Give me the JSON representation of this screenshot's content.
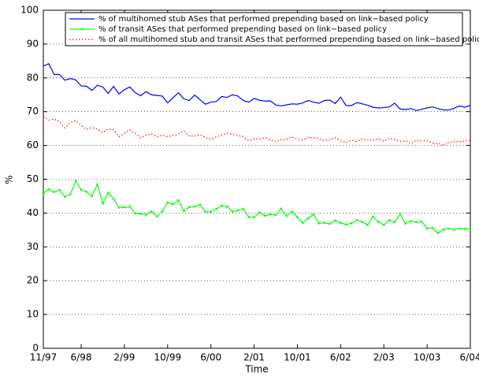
{
  "chart_data": {
    "type": "line",
    "x_label": "Time",
    "y_label": "%",
    "categories": [
      "11/97",
      null,
      null,
      null,
      null,
      null,
      null,
      "6/98",
      null,
      null,
      null,
      null,
      null,
      null,
      null,
      "2/99",
      null,
      null,
      null,
      null,
      null,
      null,
      null,
      "10/99",
      null,
      null,
      null,
      null,
      null,
      null,
      null,
      "6/00",
      null,
      null,
      null,
      null,
      null,
      null,
      null,
      "2/01",
      null,
      null,
      null,
      null,
      null,
      null,
      null,
      "10/01",
      null,
      null,
      null,
      null,
      null,
      null,
      null,
      "6/02",
      null,
      null,
      null,
      null,
      null,
      null,
      null,
      "2/03",
      null,
      null,
      null,
      null,
      null,
      null,
      null,
      "10/03",
      null,
      null,
      null,
      null,
      null,
      null,
      null,
      "6/04"
    ],
    "series": [
      {
        "name": "% of multihomed stub ASes that performed prepending based on link−based policy",
        "color": "#0000ff",
        "style": "solid",
        "values": [
          83.5,
          84.2,
          81,
          81,
          79.3,
          79.8,
          79.4,
          77.6,
          77.5,
          76.3,
          77.8,
          77.3,
          75.4,
          77.5,
          75.2,
          76.5,
          77.3,
          75.6,
          74.7,
          75.9,
          75,
          74.8,
          74.6,
          72.6,
          74.1,
          75.6,
          73.8,
          73.3,
          74.9,
          73.5,
          72.2,
          72.8,
          73,
          74.5,
          74.2,
          75,
          74.6,
          73.3,
          72.8,
          73.9,
          73.4,
          73.1,
          73.2,
          72,
          71.7,
          72,
          72.3,
          72.2,
          72.6,
          73.3,
          72.8,
          72.5,
          73.3,
          73.4,
          72.4,
          74.3,
          71.8,
          71.8,
          72.7,
          72.3,
          71.9,
          71.3,
          71.1,
          71.2,
          71.4,
          72.5,
          70.8,
          70.6,
          70.9,
          70.3,
          70.7,
          71.1,
          71.4,
          70.9,
          70.5,
          70.5,
          71,
          71.7,
          71.3,
          71.9
        ]
      },
      {
        "name": "% of transit ASes that performed prepending based on link−based policy",
        "color": "#00ff00",
        "style": "solid",
        "marker": true,
        "values": [
          45.8,
          47,
          46.2,
          46.8,
          44.8,
          45.5,
          49.5,
          46.9,
          46.3,
          45,
          48.5,
          42.8,
          46,
          44.2,
          41.6,
          41.7,
          41.9,
          39.9,
          39.8,
          39.5,
          40.5,
          39,
          40.5,
          43.1,
          42.6,
          43.8,
          40.6,
          41.8,
          41.9,
          42.5,
          40.4,
          40.4,
          41.2,
          42.2,
          41.9,
          40.4,
          40.8,
          41.2,
          38.8,
          38.8,
          40.2,
          39.2,
          39.6,
          39.4,
          41.3,
          39.1,
          40.5,
          38.8,
          37.1,
          38.4,
          39.6,
          37,
          37.1,
          36.8,
          37.8,
          37.1,
          36.6,
          37,
          37.9,
          37.4,
          36.5,
          38.9,
          37.4,
          36.5,
          37.9,
          37.3,
          39.8,
          36.9,
          37.6,
          37.3,
          37.5,
          35.4,
          35.6,
          34.1,
          35.1,
          35.4,
          35.1,
          35.4,
          35.3,
          35.4
        ]
      },
      {
        "name": "% of all multihomed stub and transit ASes that performed prepending based on link−based policy",
        "color": "#ff0000",
        "style": "dotted",
        "values": [
          68.5,
          67.5,
          67.8,
          67,
          65.2,
          66.8,
          67.3,
          65.8,
          64.8,
          65.3,
          64.8,
          63.8,
          64.9,
          64.6,
          62.6,
          63.5,
          64.6,
          63.6,
          62.3,
          63.1,
          63.4,
          62.6,
          63,
          62.6,
          63,
          63.4,
          64.3,
          62.8,
          62.8,
          63.2,
          62.3,
          61.8,
          62.5,
          63.1,
          63.6,
          63.3,
          62.9,
          62.6,
          61.4,
          61.9,
          61.9,
          62.3,
          61.7,
          61.1,
          61.7,
          61.8,
          62.5,
          61.8,
          61.6,
          62.3,
          62.3,
          62,
          61.5,
          61.7,
          62.3,
          61.4,
          60.9,
          61.5,
          61.2,
          62,
          61.5,
          61.7,
          62,
          61.3,
          62.1,
          61.7,
          61.2,
          61.4,
          60.6,
          61.5,
          61.3,
          61.5,
          60.7,
          60.6,
          60.1,
          60.9,
          61.2,
          61.1,
          61.4,
          61.3
        ]
      }
    ],
    "ylim": [
      0,
      100
    ],
    "yticks": [
      0,
      10,
      20,
      30,
      40,
      50,
      60,
      70,
      80,
      90,
      100
    ],
    "grid": true,
    "legend": "top"
  }
}
